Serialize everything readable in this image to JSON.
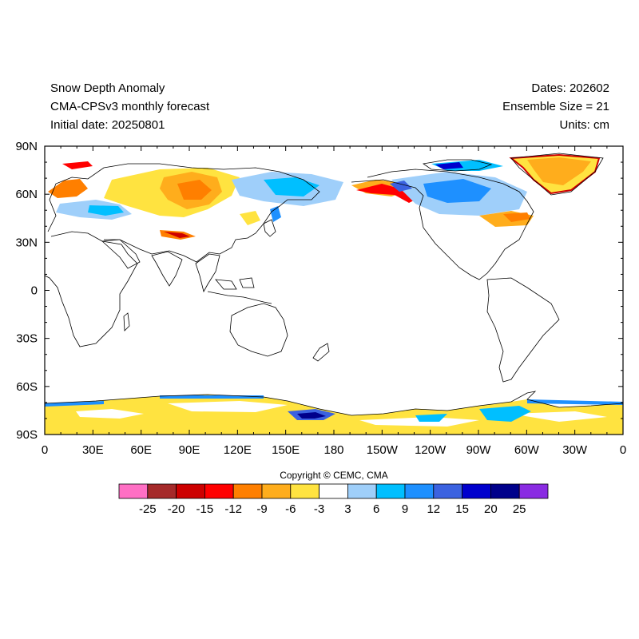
{
  "header": {
    "title": "Snow Depth Anomaly",
    "model": "CMA-CPSv3 monthly forecast",
    "initial_date": "Initial date: 20250801",
    "dates": "Dates: 202602",
    "ensemble": "Ensemble Size = 21",
    "units": "Units: cm"
  },
  "map": {
    "lon_ticks": [
      "0",
      "30E",
      "60E",
      "90E",
      "120E",
      "150E",
      "180",
      "150W",
      "120W",
      "90W",
      "60W",
      "30W",
      "0"
    ],
    "lat_ticks": [
      "90N",
      "60N",
      "30N",
      "0",
      "30S",
      "60S",
      "90S"
    ]
  },
  "copyright": "Copyright © CEMC, CMA",
  "legend": {
    "colors": [
      "#ff6fc4",
      "#a52a2a",
      "#cd0000",
      "#ff0000",
      "#ff7f00",
      "#ffad1c",
      "#ffe340",
      "#ffffff",
      "#9fcffa",
      "#00bfff",
      "#1e90ff",
      "#3b62e0",
      "#0000cd",
      "#00008b",
      "#8a2be2"
    ],
    "labels": [
      "-25",
      "-20",
      "-15",
      "-12",
      "-9",
      "-6",
      "-3",
      "3",
      "6",
      "9",
      "12",
      "15",
      "20",
      "25"
    ]
  }
}
